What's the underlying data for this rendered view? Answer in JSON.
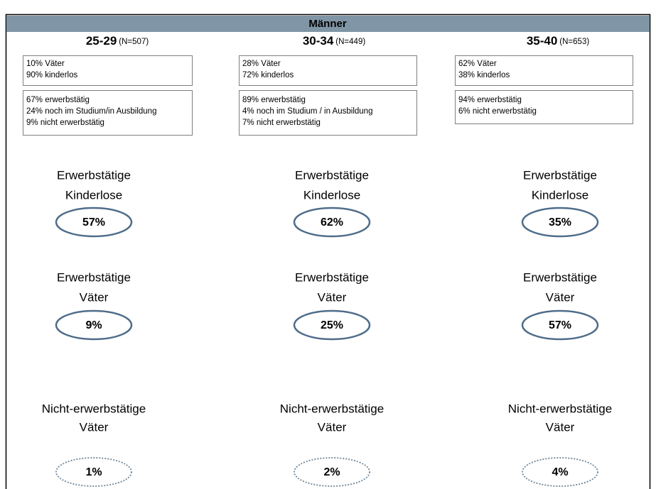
{
  "header": {
    "title": "Männer"
  },
  "columns": [
    {
      "age": "25-29",
      "n": "(N=507)",
      "status": [
        "10% Väter",
        "90% kinderlos"
      ],
      "activity": [
        "67% erwerbstätig",
        "24% noch im Studium/in Ausbildung",
        "9% nicht erwerbstätig"
      ],
      "groups": [
        {
          "label": [
            "Erwerbstätige",
            "Kinderlose"
          ],
          "value": "57%"
        },
        {
          "label": [
            "Erwerbstätige",
            "Väter"
          ],
          "value": "9%"
        },
        {
          "label": [
            "Nicht-erwerbstätige",
            "Väter"
          ],
          "value": "1%"
        }
      ]
    },
    {
      "age": "30-34",
      "n": "(N=449)",
      "status": [
        "28% Väter",
        "72% kinderlos"
      ],
      "activity": [
        "89% erwerbstätig",
        "4% noch im Studium / in Ausbildung",
        "7% nicht erwerbstätig"
      ],
      "groups": [
        {
          "label": [
            "Erwerbstätige",
            "Kinderlose"
          ],
          "value": "62%"
        },
        {
          "label": [
            "Erwerbstätige",
            "Väter"
          ],
          "value": "25%"
        },
        {
          "label": [
            "Nicht-erwerbstätige",
            "Väter"
          ],
          "value": "2%"
        }
      ]
    },
    {
      "age": "35-40",
      "n": "(N=653)",
      "status": [
        "62% Väter",
        "38% kinderlos"
      ],
      "activity": [
        "94% erwerbstätig",
        "6% nicht erwerbstätig"
      ],
      "groups": [
        {
          "label": [
            "Erwerbstätige",
            "Kinderlose"
          ],
          "value": "35%"
        },
        {
          "label": [
            "Erwerbstätige",
            "Väter"
          ],
          "value": "57%"
        },
        {
          "label": [
            "Nicht-erwerbstätige",
            "Väter"
          ],
          "value": "4%"
        }
      ]
    }
  ]
}
